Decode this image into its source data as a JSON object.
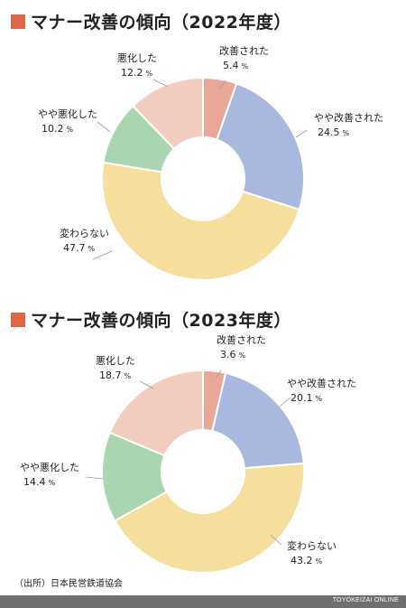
{
  "colors": {
    "improved": "#E8A898",
    "slightly_improved": "#A9B8DF",
    "unchanged": "#F6DF9D",
    "slightly_worse": "#A9D5B1",
    "worse": "#F3CCC0",
    "title_square": "#E0664A",
    "footer": "#6f6f6f"
  },
  "source": "（出所）日本民営鉄道協会",
  "footer": "TOYOKEIZAI ONLINE",
  "chart_data": [
    {
      "type": "pie",
      "title": "マナー改善の傾向（2022年度）",
      "unit": "%",
      "slices": [
        {
          "label": "改善された",
          "value": 5.4
        },
        {
          "label": "やや改善された",
          "value": 24.5
        },
        {
          "label": "変わらない",
          "value": 47.7
        },
        {
          "label": "やや悪化した",
          "value": 10.2
        },
        {
          "label": "悪化した",
          "value": 12.2
        }
      ]
    },
    {
      "type": "pie",
      "title": "マナー改善の傾向（2023年度）",
      "unit": "%",
      "slices": [
        {
          "label": "改善された",
          "value": 3.6
        },
        {
          "label": "やや改善された",
          "value": 20.1
        },
        {
          "label": "変わらない",
          "value": 43.2
        },
        {
          "label": "やや悪化した",
          "value": 14.4
        },
        {
          "label": "悪化した",
          "value": 18.7
        }
      ]
    }
  ]
}
